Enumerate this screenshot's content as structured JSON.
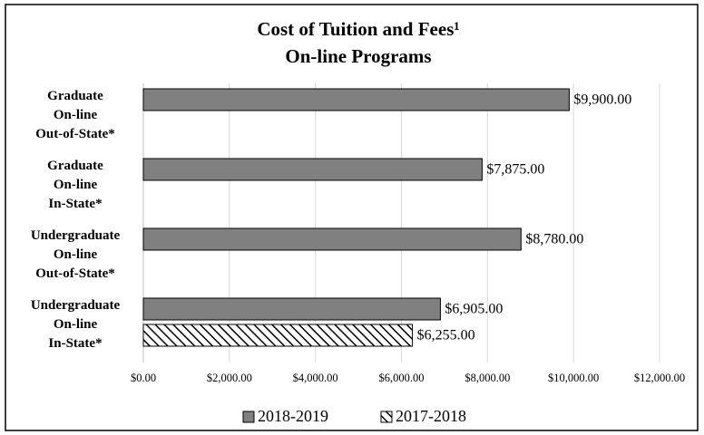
{
  "chart_data": {
    "type": "hbar",
    "title": "Cost of Tuition and Fees¹",
    "subtitle": "On-line Programs",
    "categories": [
      [
        "Graduate",
        "On-line",
        "Out-of-State*"
      ],
      [
        "Graduate",
        "On-line",
        "In-State*"
      ],
      [
        "Undergraduate",
        "On-line",
        "Out-of-State*"
      ],
      [
        "Undergraduate",
        "On-line",
        "In-State*"
      ]
    ],
    "series": [
      {
        "name": "2018-2019",
        "color": "#808080",
        "values": [
          9900,
          7875,
          8780,
          6905
        ],
        "value_labels": [
          "$9,900.00",
          "$7,875.00",
          "$8,780.00",
          "$6,905.00"
        ]
      },
      {
        "name": "2017-2018",
        "color": "hatch",
        "values": [
          null,
          null,
          null,
          6255
        ],
        "value_labels": [
          null,
          null,
          null,
          "$6,255.00"
        ]
      }
    ],
    "xlim": [
      0,
      12000
    ],
    "xticks": [
      {
        "value": 0,
        "label": "$0.00"
      },
      {
        "value": 2000,
        "label": "$2,000.00"
      },
      {
        "value": 4000,
        "label": "$4,000.00"
      },
      {
        "value": 6000,
        "label": "$6,000.00"
      },
      {
        "value": 8000,
        "label": "$8,000.00"
      },
      {
        "value": 10000,
        "label": "$10,000.00"
      },
      {
        "value": 12000,
        "label": "$12,000.00"
      }
    ],
    "grid": true,
    "legend": "bottom"
  }
}
